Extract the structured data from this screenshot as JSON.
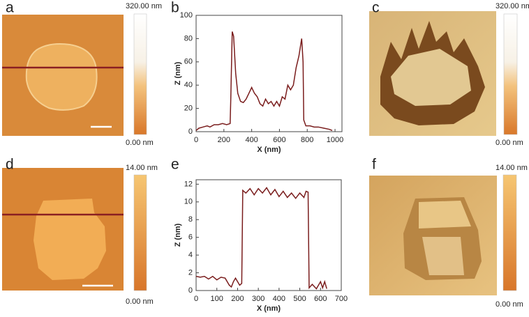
{
  "panel_labels": [
    "a",
    "b",
    "c",
    "d",
    "e",
    "f"
  ],
  "colorbars": [
    {
      "max_label": "320.00 nm",
      "min_label": "0.00 nm"
    },
    {
      "max_label": "320.00 nm",
      "min_label": "0.00 nm"
    },
    {
      "max_label": "14.00 nm",
      "min_label": "0.00 nm"
    },
    {
      "max_label": "14.00 nm",
      "min_label": "0.00 nm"
    }
  ],
  "chart_data": [
    {
      "type": "line",
      "x_label": "X (nm)",
      "y_label": "Z (nm)",
      "xlim": [
        0,
        1050
      ],
      "ylim": [
        0,
        100
      ],
      "xticks": [
        0,
        200,
        400,
        600,
        800,
        1000
      ],
      "yticks": [
        0,
        20,
        40,
        60,
        80,
        100
      ],
      "grid": false,
      "series": [
        {
          "color": "#7a1d1d",
          "x": [
            0,
            20,
            50,
            80,
            100,
            130,
            160,
            190,
            220,
            245,
            250,
            260,
            270,
            285,
            300,
            320,
            340,
            360,
            380,
            400,
            420,
            440,
            460,
            480,
            500,
            520,
            540,
            560,
            580,
            600,
            620,
            640,
            660,
            680,
            700,
            720,
            740,
            760,
            770,
            775,
            790,
            820,
            850,
            880,
            920,
            960,
            980
          ],
          "values": [
            1,
            3,
            4,
            5,
            4,
            6,
            6,
            7,
            6,
            7,
            30,
            86,
            82,
            50,
            33,
            26,
            25,
            28,
            33,
            38,
            33,
            30,
            24,
            22,
            28,
            24,
            26,
            22,
            26,
            22,
            30,
            28,
            40,
            36,
            40,
            55,
            65,
            80,
            60,
            10,
            5,
            5,
            4,
            4,
            3,
            2,
            1
          ]
        }
      ]
    },
    {
      "type": "line",
      "x_label": "X (nm)",
      "y_label": "Z (nm)",
      "xlim": [
        0,
        700
      ],
      "ylim": [
        0,
        12.5
      ],
      "xticks": [
        0,
        100,
        200,
        300,
        400,
        500,
        600,
        700
      ],
      "yticks": [
        0,
        2,
        4,
        6,
        8,
        10,
        12
      ],
      "grid": false,
      "series": [
        {
          "color": "#7a1d1d",
          "x": [
            0,
            20,
            40,
            60,
            80,
            100,
            120,
            140,
            160,
            170,
            180,
            190,
            200,
            210,
            220,
            225,
            240,
            260,
            280,
            300,
            320,
            340,
            360,
            380,
            400,
            420,
            440,
            460,
            480,
            500,
            520,
            530,
            540,
            545,
            560,
            580,
            600,
            610,
            620,
            630
          ],
          "values": [
            1.6,
            1.5,
            1.6,
            1.3,
            1.6,
            1.2,
            1.5,
            1.4,
            0.6,
            0.4,
            1.0,
            1.4,
            1.0,
            0.6,
            0.8,
            11.3,
            11,
            11.5,
            10.8,
            11.5,
            11,
            11.6,
            10.8,
            11.4,
            10.6,
            11.2,
            10.5,
            11,
            10.4,
            11,
            10.5,
            11.2,
            11.1,
            0.3,
            0.7,
            0.2,
            1.0,
            0.3,
            1.0,
            0.2
          ]
        }
      ]
    }
  ]
}
